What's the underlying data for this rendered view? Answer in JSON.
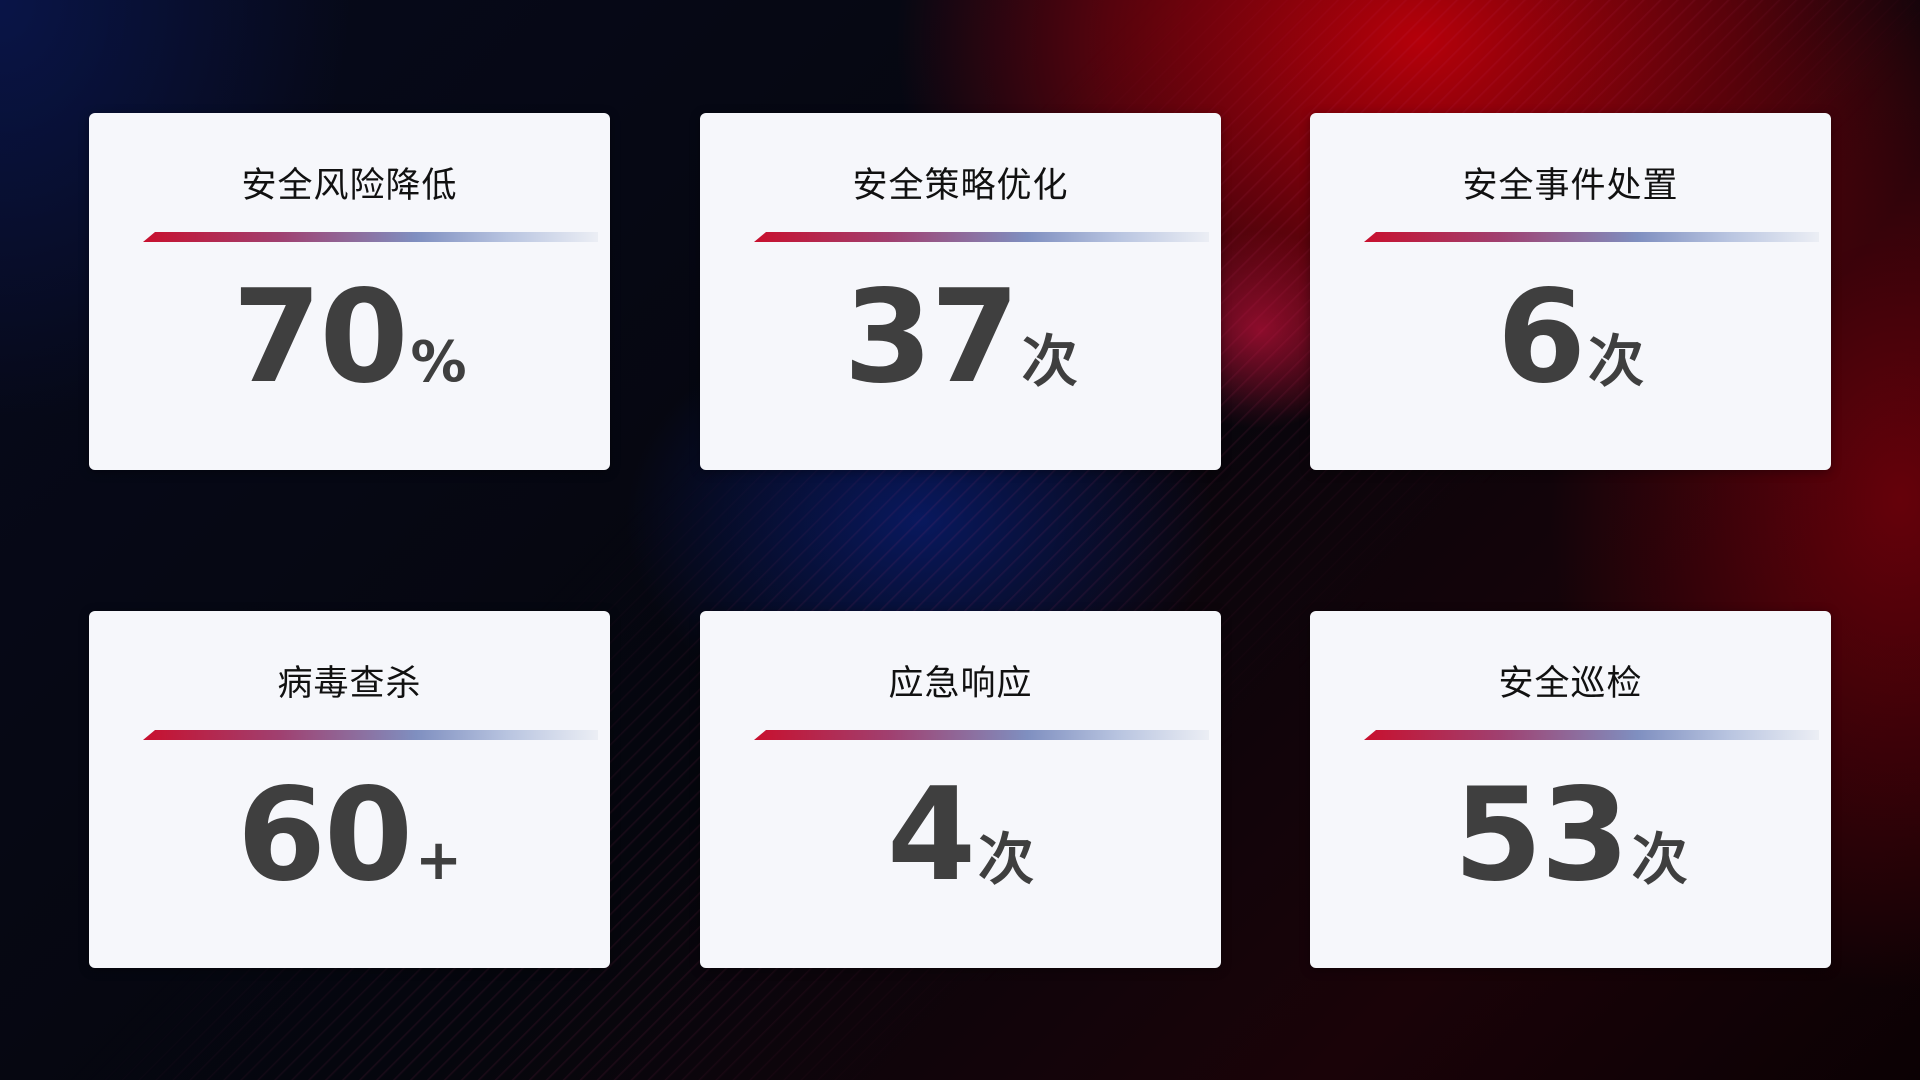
{
  "colors": {
    "accent_red": "#c8102e",
    "accent_blue": "#7f8fc0",
    "card_bg": "#f6f7fb",
    "value_text": "#3f3f3f"
  },
  "cards": [
    {
      "title": "安全风险降低",
      "value": "70",
      "unit": "%"
    },
    {
      "title": "安全策略优化",
      "value": "37",
      "unit": "次"
    },
    {
      "title": "安全事件处置",
      "value": "6",
      "unit": "次"
    },
    {
      "title": "病毒查杀",
      "value": "60",
      "unit": "+"
    },
    {
      "title": "应急响应",
      "value": "4",
      "unit": "次"
    },
    {
      "title": "安全巡检",
      "value": "53",
      "unit": "次"
    }
  ]
}
